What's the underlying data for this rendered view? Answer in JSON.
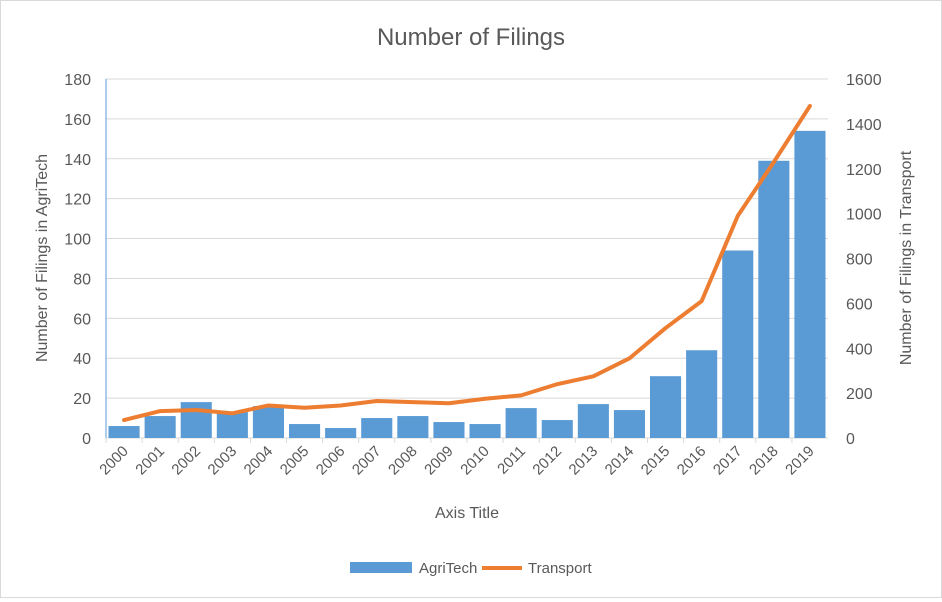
{
  "chart_data": {
    "type": "bar+line",
    "title": "Number of Filings",
    "xlabel": "Axis Title",
    "ylabel": "Number of Filings in AgriTech",
    "y2label": "Number of Filings in Transport",
    "categories": [
      "2000",
      "2001",
      "2002",
      "2003",
      "2004",
      "2005",
      "2006",
      "2007",
      "2008",
      "2009",
      "2010",
      "2011",
      "2012",
      "2013",
      "2014",
      "2015",
      "2016",
      "2017",
      "2018",
      "2019"
    ],
    "series": [
      {
        "name": "AgriTech",
        "type": "bar",
        "axis": "left",
        "color": "#5b9bd5",
        "values": [
          6,
          11,
          18,
          13,
          16,
          7,
          5,
          10,
          11,
          8,
          7,
          15,
          9,
          17,
          14,
          31,
          44,
          94,
          139,
          154
        ]
      },
      {
        "name": "Transport",
        "type": "line",
        "axis": "right",
        "color": "#ed7d31",
        "values": [
          80,
          120,
          125,
          110,
          145,
          135,
          145,
          165,
          160,
          155,
          175,
          190,
          240,
          275,
          355,
          490,
          610,
          990,
          1230,
          1480
        ]
      }
    ],
    "ylim": [
      0,
      180
    ],
    "yticks": [
      "0",
      "20",
      "40",
      "60",
      "80",
      "100",
      "120",
      "140",
      "160",
      "180"
    ],
    "y2lim": [
      0,
      1600
    ],
    "y2ticks": [
      "0",
      "200",
      "400",
      "600",
      "800",
      "1000",
      "1200",
      "1400",
      "1600"
    ],
    "grid": true,
    "legend": "bottom"
  }
}
